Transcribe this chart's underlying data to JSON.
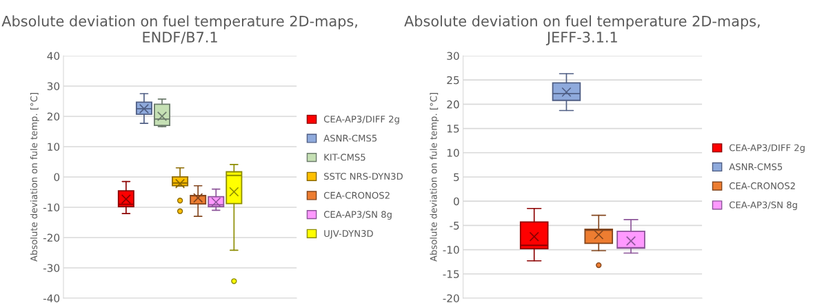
{
  "chart_data": [
    {
      "type": "box",
      "title": "Absolute deviation on fuel temperature 2D-maps,\nENDF/B7.1",
      "ylabel": "Absolute deviation on fule temp. [°C]",
      "categories": [
        null
      ],
      "ylim": [
        -40,
        40
      ],
      "yticks": [
        -40,
        -30,
        -20,
        -10,
        0,
        10,
        20,
        30,
        40
      ],
      "grid": "y",
      "legend": "right",
      "marker": "circle",
      "series": [
        {
          "name": "CEA-AP3/DIFF 2g",
          "color": "#ff0000",
          "boxes": [
            {
              "low": -12.1,
              "q1": -9.8,
              "median": -9.0,
              "q3": -4.6,
              "high": -1.5,
              "mean": -7.3
            }
          ]
        },
        {
          "name": "ASNR-CMS5",
          "color": "#8faadc",
          "boxes": [
            {
              "low": 17.7,
              "q1": 20.7,
              "median": 22.5,
              "q3": 24.7,
              "high": 27.5,
              "mean": 22.5
            }
          ]
        },
        {
          "name": "KIT-CMS5",
          "color": "#c5e0b4",
          "boxes": [
            {
              "low": 16.6,
              "q1": 17.0,
              "median": 19.1,
              "q3": 24.0,
              "high": 25.7,
              "mean": 20.0
            }
          ]
        },
        {
          "name": "SSTC NRS-DYN3D",
          "color": "#ffc000",
          "boxes": [
            {
              "low": -3.0,
              "q1": -2.9,
              "median": -2.0,
              "q3": 0.0,
              "high": 3.0,
              "mean": -2.2,
              "outliers": [
                -7.8,
                -11.3
              ]
            }
          ]
        },
        {
          "name": "CEA-CRONOS2",
          "color": "#ed7d31",
          "boxes": [
            {
              "low": -13.0,
              "q1": -8.9,
              "median": -6.2,
              "q3": -6.1,
              "high": -2.9,
              "mean": -6.9
            }
          ]
        },
        {
          "name": "CEA-AP3/SN 8g",
          "color": "#ff99ff",
          "boxes": [
            {
              "low": -11.0,
              "q1": -9.8,
              "median": -9.2,
              "q3": -6.5,
              "high": -4.0,
              "mean": -8.3
            }
          ]
        },
        {
          "name": "UJV-DYN3D",
          "color": "#ffff00",
          "boxes": [
            {
              "low": -24.2,
              "q1": -8.8,
              "median": 0.5,
              "q3": 1.7,
              "high": 4.1,
              "mean": -4.9,
              "outliers": [
                -34.4
              ]
            }
          ]
        }
      ]
    },
    {
      "type": "box",
      "title": "Absolute deviation on fuel temperature 2D-maps,\nJEFF-3.1.1",
      "ylabel": "Absolute deviation on fule temp. [°C]",
      "categories": [
        null
      ],
      "ylim": [
        -20,
        30
      ],
      "yticks": [
        -20,
        -15,
        -10,
        -5,
        0,
        5,
        10,
        15,
        20,
        25,
        30
      ],
      "grid": "y",
      "legend": "right",
      "marker": "circle",
      "series": [
        {
          "name": "CEA-AP3/DIFF 2g",
          "color": "#ff0000",
          "boxes": [
            {
              "low": -12.3,
              "q1": -9.8,
              "median": -9.1,
              "q3": -4.3,
              "high": -1.5,
              "mean": -7.3
            }
          ]
        },
        {
          "name": "ASNR-CMS5",
          "color": "#8faadc",
          "boxes": [
            {
              "low": 18.7,
              "q1": 20.8,
              "median": 22.2,
              "q3": 24.4,
              "high": 26.3,
              "mean": 22.5
            }
          ]
        },
        {
          "name": "CEA-CRONOS2",
          "color": "#ed7d31",
          "boxes": [
            {
              "low": -10.2,
              "q1": -8.7,
              "median": -6.0,
              "q3": -5.8,
              "high": -2.9,
              "mean": -6.9,
              "outliers": [
                -13.2
              ]
            }
          ]
        },
        {
          "name": "CEA-AP3/SN 8g",
          "color": "#ff99ff",
          "boxes": [
            {
              "low": -10.7,
              "q1": -9.7,
              "median": -9.6,
              "q3": -6.2,
              "high": -3.8,
              "mean": -8.2
            }
          ]
        }
      ]
    }
  ]
}
